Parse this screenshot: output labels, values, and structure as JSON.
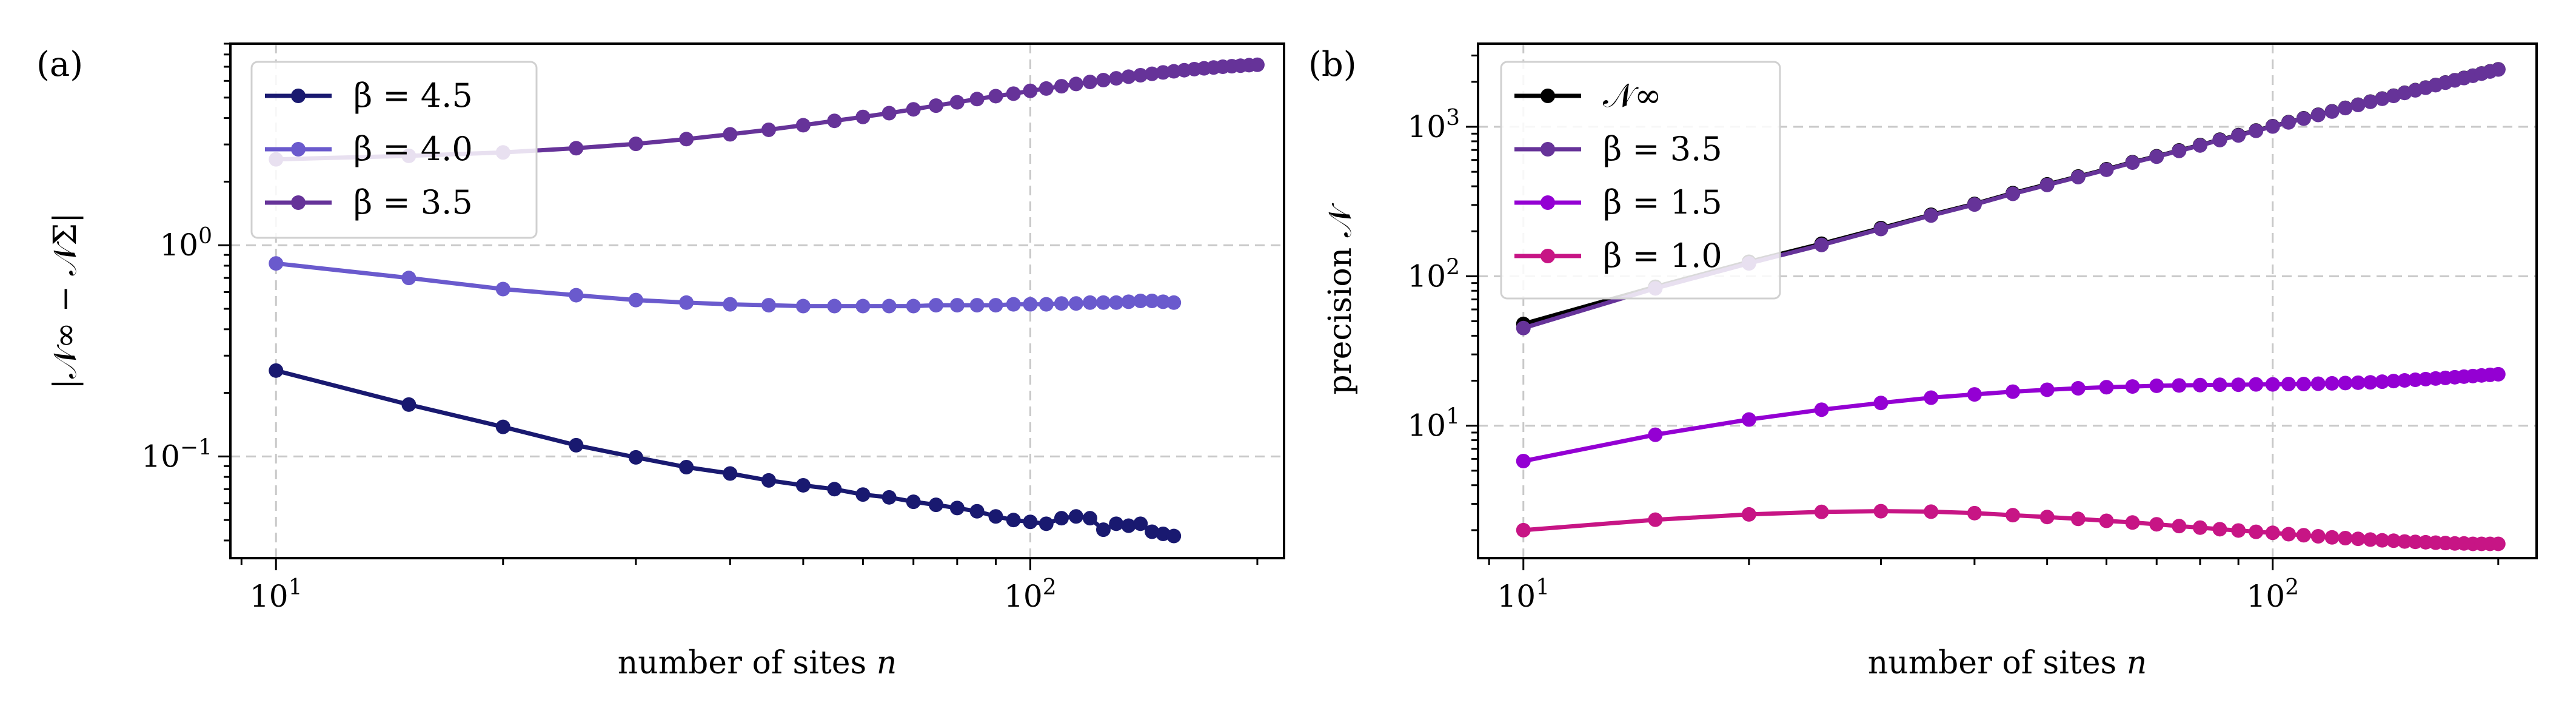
{
  "chart_data": [
    {
      "type": "line",
      "panel_label": "(a)",
      "xlabel": "number of sites",
      "xlabel_var": "n",
      "ylabel": "|𝒩∞ − 𝒩Σ|",
      "xscale": "log",
      "yscale": "log",
      "xlim": [
        8.7,
        217
      ],
      "ylim": [
        0.033,
        9.0
      ],
      "xticks": [
        {
          "value": 10,
          "base": "10",
          "exp": "1"
        },
        {
          "value": 100,
          "base": "10",
          "exp": "2"
        }
      ],
      "yticks": [
        {
          "value": 0.1,
          "base": "10",
          "exp": "−1"
        },
        {
          "value": 1,
          "base": "10",
          "exp": "0"
        }
      ],
      "grid": true,
      "legend_position": "upper-left",
      "series": [
        {
          "name": "β = 4.5",
          "color": "#191970",
          "x": [
            10,
            15,
            20,
            25,
            30,
            35,
            40,
            45,
            50,
            55,
            60,
            65,
            70,
            75,
            80,
            85,
            90,
            95,
            100,
            105,
            110,
            115,
            120,
            125,
            130,
            135,
            140,
            145,
            150,
            155
          ],
          "y": [
            0.255,
            0.176,
            0.138,
            0.113,
            0.099,
            0.089,
            0.083,
            0.077,
            0.073,
            0.07,
            0.066,
            0.064,
            0.061,
            0.059,
            0.057,
            0.055,
            0.052,
            0.05,
            0.049,
            0.048,
            0.051,
            0.052,
            0.051,
            0.045,
            0.048,
            0.047,
            0.048,
            0.044,
            0.043,
            0.042
          ]
        },
        {
          "name": "β = 4.0",
          "color": "#6a5acd",
          "x": [
            10,
            15,
            20,
            25,
            30,
            35,
            40,
            45,
            50,
            55,
            60,
            65,
            70,
            75,
            80,
            85,
            90,
            95,
            100,
            105,
            110,
            115,
            120,
            125,
            130,
            135,
            140,
            145,
            150,
            155
          ],
          "y": [
            0.82,
            0.7,
            0.62,
            0.58,
            0.55,
            0.535,
            0.525,
            0.52,
            0.515,
            0.515,
            0.515,
            0.515,
            0.515,
            0.52,
            0.52,
            0.52,
            0.52,
            0.525,
            0.525,
            0.525,
            0.53,
            0.53,
            0.535,
            0.535,
            0.535,
            0.54,
            0.545,
            0.545,
            0.54,
            0.535
          ]
        },
        {
          "name": "β = 3.5",
          "color": "#663399",
          "x": [
            10,
            15,
            20,
            25,
            30,
            35,
            40,
            45,
            50,
            55,
            60,
            65,
            70,
            75,
            80,
            85,
            90,
            95,
            100,
            105,
            110,
            115,
            120,
            125,
            130,
            135,
            140,
            145,
            150,
            155,
            160,
            165,
            170,
            175,
            180,
            185,
            190,
            195,
            200
          ],
          "y": [
            2.55,
            2.65,
            2.75,
            2.88,
            3.02,
            3.18,
            3.35,
            3.52,
            3.7,
            3.88,
            4.05,
            4.22,
            4.4,
            4.58,
            4.75,
            4.92,
            5.08,
            5.22,
            5.38,
            5.52,
            5.66,
            5.8,
            5.93,
            6.05,
            6.17,
            6.28,
            6.38,
            6.48,
            6.58,
            6.66,
            6.74,
            6.82,
            6.88,
            6.94,
            7.0,
            7.04,
            7.08,
            7.12,
            7.15
          ]
        }
      ]
    },
    {
      "type": "line",
      "panel_label": "(b)",
      "xlabel": "number of sites",
      "xlabel_var": "n",
      "ylabel": "precision 𝒩",
      "xscale": "log",
      "yscale": "log",
      "xlim": [
        8.7,
        225
      ],
      "ylim": [
        1.3,
        3600
      ],
      "xticks": [
        {
          "value": 10,
          "base": "10",
          "exp": "1"
        },
        {
          "value": 100,
          "base": "10",
          "exp": "2"
        }
      ],
      "yticks": [
        {
          "value": 10,
          "base": "10",
          "exp": "1"
        },
        {
          "value": 100,
          "base": "10",
          "exp": "2"
        },
        {
          "value": 1000,
          "base": "10",
          "exp": "3"
        }
      ],
      "grid": true,
      "legend_position": "upper-left",
      "series": [
        {
          "name": "𝒩∞",
          "color": "#000000",
          "x": [
            10,
            15,
            20,
            25,
            30,
            35,
            40,
            45,
            50,
            55,
            60,
            65,
            70,
            75,
            80,
            85,
            90,
            95,
            100,
            105,
            110,
            115,
            120,
            125,
            130,
            135,
            140,
            145,
            150,
            155,
            160,
            165,
            170,
            175,
            180,
            185,
            190,
            195,
            200
          ],
          "y": [
            48,
            85,
            125,
            165,
            210,
            258,
            305,
            360,
            412,
            465,
            520,
            580,
            635,
            695,
            755,
            820,
            880,
            945,
            1010,
            1075,
            1140,
            1205,
            1270,
            1340,
            1405,
            1475,
            1545,
            1615,
            1690,
            1760,
            1830,
            1905,
            1980,
            2050,
            2125,
            2200,
            2275,
            2350,
            2425
          ]
        },
        {
          "name": "β = 3.5",
          "color": "#663399",
          "x": [
            10,
            15,
            20,
            25,
            30,
            35,
            40,
            45,
            50,
            55,
            60,
            65,
            70,
            75,
            80,
            85,
            90,
            95,
            100,
            105,
            110,
            115,
            120,
            125,
            130,
            135,
            140,
            145,
            150,
            155,
            160,
            165,
            170,
            175,
            180,
            185,
            190,
            195,
            200
          ],
          "y": [
            45,
            83,
            122,
            162,
            207,
            255,
            302,
            356,
            408,
            461,
            516,
            576,
            631,
            690,
            750,
            815,
            875,
            940,
            1005,
            1070,
            1135,
            1200,
            1265,
            1335,
            1400,
            1470,
            1540,
            1610,
            1685,
            1755,
            1825,
            1900,
            1975,
            2045,
            2120,
            2195,
            2270,
            2345,
            2420
          ]
        },
        {
          "name": "β = 1.5",
          "color": "#9400d3",
          "x": [
            10,
            15,
            20,
            25,
            30,
            35,
            40,
            45,
            50,
            55,
            60,
            65,
            70,
            75,
            80,
            85,
            90,
            95,
            100,
            105,
            110,
            115,
            120,
            125,
            130,
            135,
            140,
            145,
            150,
            155,
            160,
            165,
            170,
            175,
            180,
            185,
            190,
            195,
            200
          ],
          "y": [
            5.8,
            8.7,
            11.0,
            12.8,
            14.2,
            15.4,
            16.2,
            16.9,
            17.4,
            17.8,
            18.1,
            18.3,
            18.5,
            18.6,
            18.7,
            18.8,
            18.8,
            18.9,
            18.9,
            19.0,
            19.0,
            19.1,
            19.2,
            19.3,
            19.4,
            19.5,
            19.7,
            19.9,
            20.1,
            20.3,
            20.5,
            20.7,
            20.9,
            21.1,
            21.3,
            21.5,
            21.7,
            21.9,
            22.1
          ]
        },
        {
          "name": "β = 1.0",
          "color": "#c71585",
          "x": [
            10,
            15,
            20,
            25,
            30,
            35,
            40,
            45,
            50,
            55,
            60,
            65,
            70,
            75,
            80,
            85,
            90,
            95,
            100,
            105,
            110,
            115,
            120,
            125,
            130,
            135,
            140,
            145,
            150,
            155,
            160,
            165,
            170,
            175,
            180,
            185,
            190,
            195,
            200
          ],
          "y": [
            2.0,
            2.35,
            2.55,
            2.65,
            2.68,
            2.66,
            2.6,
            2.52,
            2.45,
            2.38,
            2.31,
            2.25,
            2.19,
            2.13,
            2.08,
            2.03,
            1.99,
            1.95,
            1.92,
            1.88,
            1.85,
            1.82,
            1.79,
            1.77,
            1.75,
            1.73,
            1.71,
            1.7,
            1.68,
            1.67,
            1.66,
            1.65,
            1.64,
            1.63,
            1.63,
            1.62,
            1.62,
            1.62,
            1.62
          ]
        }
      ]
    }
  ]
}
